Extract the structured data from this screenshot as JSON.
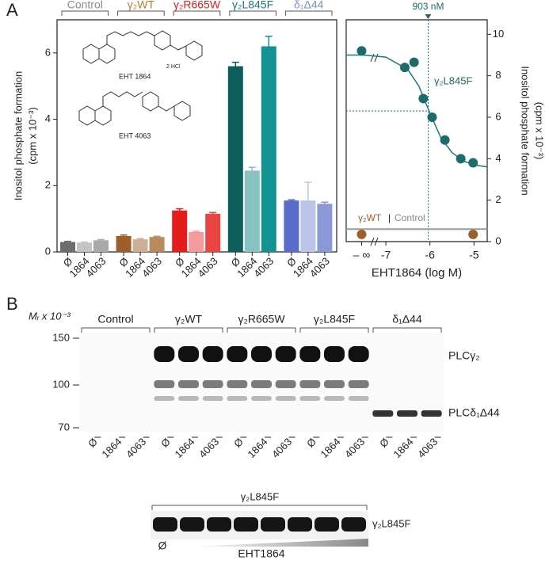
{
  "panel_labels": [
    "A",
    "B"
  ],
  "chart_data": [
    {
      "type": "bar",
      "y_label": "Inositol phosphate formation",
      "y_label_unit": "(cpm x 10⁻³)",
      "categories": [
        "Ø",
        "1864",
        "4063"
      ],
      "ylim": [
        0,
        7
      ],
      "yticks": [
        0,
        2,
        4,
        6
      ],
      "groups": [
        {
          "name": "Control",
          "color": "#8a8a8a",
          "colors": [
            "#6d6d6d",
            "#c4c4c4",
            "#a9a9a9"
          ],
          "values": [
            0.3,
            0.28,
            0.35
          ],
          "errors": [
            0.02,
            0.02,
            0.02
          ]
        },
        {
          "name": "γ₂WT",
          "color": "#c07a2e",
          "colors": [
            "#9c5e2a",
            "#cbb097",
            "#b88a60"
          ],
          "values": [
            0.48,
            0.38,
            0.45
          ],
          "errors": [
            0.03,
            0.02,
            0.02
          ]
        },
        {
          "name": "γ₂R665W",
          "color": "#e02020",
          "colors": [
            "#e51c1c",
            "#f59a9a",
            "#ea4543"
          ],
          "values": [
            1.25,
            0.6,
            1.15
          ],
          "errors": [
            0.05,
            0.02,
            0.04
          ]
        },
        {
          "name": "γ₂L845F",
          "color": "#1d7a7a",
          "colors": [
            "#0d5d5d",
            "#86c2c2",
            "#139292"
          ],
          "values": [
            5.6,
            2.45,
            6.2
          ],
          "errors": [
            0.12,
            0.1,
            0.3
          ]
        },
        {
          "name": "δ₁Δ44",
          "color": "#7a8fd6",
          "colors": [
            "#5a6cc9",
            "#bcc4ea",
            "#8a98d8"
          ],
          "values": [
            1.55,
            1.55,
            1.45
          ],
          "errors": [
            0.02,
            0.55,
            0.05
          ]
        }
      ],
      "compounds": [
        "EHT 1864",
        "EHT 4063"
      ],
      "salt": "2 HCl"
    },
    {
      "type": "scatter",
      "x_label": "EHT1864 (log M)",
      "y_label": "Inositol phosphate formation",
      "y_label_unit": "(cpm x 10⁻³)",
      "xlim": [
        -7.9,
        -4.7
      ],
      "xticks": [
        {
          "value": -7.55,
          "label": "– ∞"
        },
        -7,
        -6,
        -5
      ],
      "ylim": [
        0,
        10.7
      ],
      "yticks": [
        0,
        2,
        4,
        6,
        8,
        10
      ],
      "series": [
        {
          "name": "γ₂L845F",
          "color": "#1d6b6b",
          "mode": "points",
          "x": [
            -7.55,
            -6.57,
            -6.36,
            -6.15,
            -5.95,
            -5.66,
            -5.3,
            -5.02
          ],
          "values": [
            9.2,
            8.4,
            8.65,
            6.9,
            6.0,
            4.9,
            4.0,
            3.8
          ]
        },
        {
          "name": "γ₂WT",
          "color": "#9c5e2a",
          "mode": "points",
          "x": [
            -7.55,
            -5.02
          ],
          "values": [
            0.35,
            0.35
          ]
        },
        {
          "name": "Control",
          "color": "#9a9a9a",
          "mode": "line",
          "x": [
            -7.9,
            -4.7
          ],
          "values": [
            0.6,
            0.6
          ]
        }
      ],
      "fit": {
        "color": "#1d7a7a",
        "x": [
          -7.9,
          -7.5,
          -7,
          -6.5,
          -6.25,
          -6,
          -5.75,
          -5.5,
          -5.25,
          -5,
          -4.7
        ],
        "values": [
          9.0,
          9.0,
          8.9,
          8.3,
          7.5,
          6.2,
          5.0,
          4.3,
          3.9,
          3.7,
          3.6
        ]
      },
      "annotation": {
        "text": "903 nM",
        "x": -6.04,
        "y": 6.3
      },
      "separator": "|"
    }
  ],
  "blot": {
    "mr_label": "Mᵣ x 10⁻³",
    "markers": [
      "150",
      "100",
      "70"
    ],
    "groups": [
      "Control",
      "γ₂WT",
      "γ₂R665W",
      "γ₂L845F",
      "δ₁Δ44"
    ],
    "lanes": [
      "Ø",
      "1864",
      "4063"
    ],
    "bands": [
      "PLCγ₂",
      "PLCδ₁Δ44"
    ]
  },
  "blot2": {
    "title": "γ₂L845F",
    "band": "γ₂L845F",
    "first_lane": "Ø",
    "gradient_label": "EHT1864"
  }
}
